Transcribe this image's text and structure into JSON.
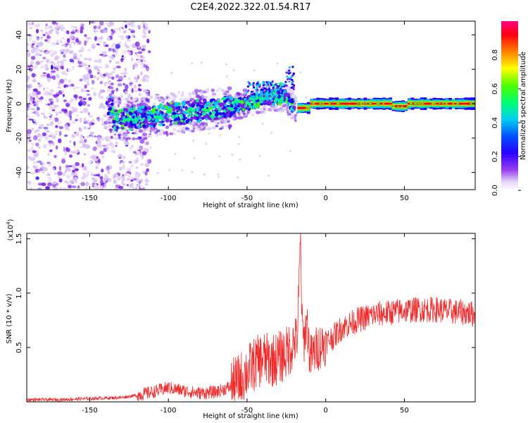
{
  "title": "C2E4.2022.322.01.54.R17",
  "chart_data": [
    {
      "type": "heatmap",
      "panel": "spectrogram",
      "xlabel": "Height of straight line (km)",
      "ylabel": "Frequency (Hz)",
      "xlim": [
        -190,
        95
      ],
      "ylim": [
        -50,
        48
      ],
      "xticks": [
        -150,
        -100,
        -50,
        0,
        50
      ],
      "yticks": [
        -40,
        -20,
        0,
        20,
        40
      ],
      "colorbar": {
        "label": "Normalized spectral amplitude",
        "range": [
          0.0,
          1.0
        ],
        "ticks": [
          "0.0",
          "0.2",
          "0.4",
          "0.6",
          "0.8"
        ],
        "colormap": [
          "#ffffff",
          "#d6bff5",
          "#7a1fe6",
          "#1a00ff",
          "#00c8ff",
          "#00ff80",
          "#40ff00",
          "#ffff00",
          "#ff8000",
          "#ff0020",
          "#ff0080"
        ]
      },
      "features": {
        "scatter_region_km": [
          -190,
          -120
        ],
        "drift_line": [
          [
            -135,
            -10
          ],
          [
            -100,
            -6
          ],
          [
            -60,
            -2
          ],
          [
            -40,
            3
          ],
          [
            -25,
            4
          ],
          [
            -20,
            -2
          ],
          [
            0,
            0
          ],
          [
            95,
            0
          ]
        ],
        "peak_band_km": [
          -18,
          95
        ],
        "peak_frequency_hz": 0
      }
    },
    {
      "type": "line",
      "panel": "snr",
      "xlabel": "Height of straight line (km)",
      "ylabel": "SNR (10 * v/v)",
      "scale_label": "(x10",
      "scale_exponent": "4",
      "xlim": [
        -190,
        95
      ],
      "ylim": [
        0,
        1.55
      ],
      "xticks": [
        -150,
        -100,
        -50,
        0,
        50
      ],
      "yticks": [
        0.5,
        1.0,
        1.5
      ],
      "ytick_labels": [
        "0.5",
        "1.0",
        "1.5"
      ],
      "color": "#ee2a2a",
      "x": [
        -190,
        -170,
        -150,
        -130,
        -120,
        -110,
        -100,
        -90,
        -80,
        -70,
        -60,
        -55,
        -50,
        -45,
        -40,
        -35,
        -30,
        -25,
        -20,
        -18,
        -16,
        -15,
        -14,
        -12,
        -10,
        -5,
        0,
        5,
        10,
        20,
        30,
        40,
        50,
        60,
        70,
        80,
        90,
        95
      ],
      "y": [
        0.02,
        0.02,
        0.03,
        0.04,
        0.06,
        0.09,
        0.13,
        0.1,
        0.08,
        0.09,
        0.14,
        0.2,
        0.28,
        0.35,
        0.4,
        0.38,
        0.4,
        0.45,
        0.55,
        0.6,
        1.5,
        0.7,
        0.55,
        0.75,
        0.4,
        0.5,
        0.55,
        0.6,
        0.68,
        0.75,
        0.8,
        0.82,
        0.84,
        0.85,
        0.85,
        0.83,
        0.82,
        0.8
      ]
    }
  ]
}
